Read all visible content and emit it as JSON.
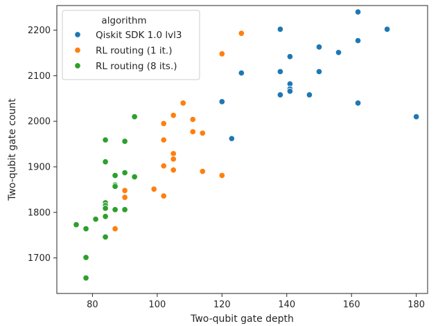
{
  "chart_data": {
    "type": "scatter",
    "xlabel": "Two-qubit gate depth",
    "ylabel": "Two-qubit gate count",
    "xlim": [
      69,
      183.5
    ],
    "ylim": [
      1622,
      2254
    ],
    "xticks": [
      80,
      100,
      120,
      140,
      160,
      180
    ],
    "yticks": [
      1700,
      1800,
      1900,
      2000,
      2100,
      2200
    ],
    "grid": false,
    "legend": {
      "title": "algorithm",
      "position": "top-left"
    },
    "series": [
      {
        "name": "Qiskit SDK 1.0 lvl3",
        "color": "#1f77b4",
        "points": [
          [
            162,
            2240
          ],
          [
            138,
            2202
          ],
          [
            171,
            2202
          ],
          [
            162,
            2177
          ],
          [
            150,
            2163
          ],
          [
            141,
            2142
          ],
          [
            156,
            2151
          ],
          [
            126,
            2106
          ],
          [
            138,
            2109
          ],
          [
            150,
            2109
          ],
          [
            141,
            2082
          ],
          [
            141,
            2071
          ],
          [
            141,
            2066
          ],
          [
            138,
            2058
          ],
          [
            147,
            2058
          ],
          [
            120,
            2043
          ],
          [
            162,
            2040
          ],
          [
            180,
            2010
          ],
          [
            123,
            1962
          ]
        ]
      },
      {
        "name": "RL routing (1 it.)",
        "color": "#ff7f0e",
        "points": [
          [
            126,
            2193
          ],
          [
            120,
            2148
          ],
          [
            108,
            2040
          ],
          [
            105,
            2013
          ],
          [
            111,
            2004
          ],
          [
            102,
            1995
          ],
          [
            111,
            1977
          ],
          [
            114,
            1974
          ],
          [
            102,
            1959
          ],
          [
            105,
            1929
          ],
          [
            105,
            1917
          ],
          [
            102,
            1902
          ],
          [
            105,
            1893
          ],
          [
            114,
            1890
          ],
          [
            120,
            1881
          ],
          [
            99,
            1851
          ],
          [
            90,
            1848
          ],
          [
            90,
            1833
          ],
          [
            102,
            1836
          ],
          [
            87,
            1764
          ]
        ]
      },
      {
        "name": "RL routing (8 its.)",
        "color": "#2ca02c",
        "points": [
          [
            93,
            2010
          ],
          [
            84,
            1959
          ],
          [
            90,
            1956
          ],
          [
            84,
            1911
          ],
          [
            90,
            1887
          ],
          [
            87,
            1881
          ],
          [
            93,
            1878
          ],
          [
            87,
            1860
          ],
          [
            87,
            1857
          ],
          [
            84,
            1821
          ],
          [
            84,
            1815
          ],
          [
            84,
            1809
          ],
          [
            87,
            1806
          ],
          [
            90,
            1806
          ],
          [
            81,
            1785
          ],
          [
            84,
            1791
          ],
          [
            75,
            1773
          ],
          [
            78,
            1764
          ],
          [
            84,
            1746
          ],
          [
            78,
            1701
          ],
          [
            78,
            1656
          ]
        ]
      }
    ]
  }
}
